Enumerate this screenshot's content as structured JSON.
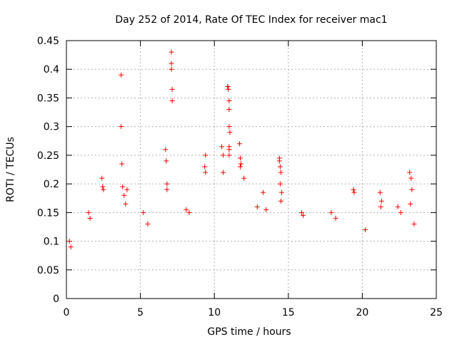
{
  "chart_data": {
    "type": "scatter",
    "title": "Day 252 of 2014, Rate Of TEC Index for receiver mac1",
    "xlabel": "GPS time / hours",
    "ylabel": "ROTI / TECUs",
    "xlim": [
      0,
      25
    ],
    "ylim": [
      0,
      0.45
    ],
    "xticks": [
      "0",
      "5",
      "10",
      "15",
      "20",
      "25"
    ],
    "yticks": [
      "0",
      "0.05",
      "0.1",
      "0.15",
      "0.2",
      "0.25",
      "0.3",
      "0.35",
      "0.4",
      "0.45"
    ],
    "grid": true,
    "marker": "plus",
    "color": "#ff0000",
    "series": [
      {
        "x": [
          3.7,
          3.7,
          7.1,
          7.1,
          7.1,
          7.15,
          7.15,
          10.9,
          10.9,
          10.95,
          11.0,
          11.0,
          11.0,
          11.05,
          11.0,
          11.0,
          11.0,
          11.7,
          11.75,
          11.8,
          11.75,
          12.0,
          13.3,
          14.4,
          14.4,
          14.45,
          14.5,
          14.45,
          14.55,
          14.5,
          9.4,
          9.35,
          9.4,
          10.5,
          10.6,
          10.6,
          6.7,
          6.75,
          6.8,
          6.8,
          2.4,
          2.45,
          2.5,
          3.75,
          3.8,
          3.9,
          4.0,
          4.1,
          19.4,
          19.45,
          21.2,
          21.3,
          21.25,
          23.2,
          23.3,
          23.35,
          23.25,
          0.2,
          0.3,
          1.5,
          1.6,
          5.2,
          5.5,
          8.1,
          8.3,
          12.9,
          13.5,
          16.0,
          15.9,
          17.9,
          18.2,
          20.2,
          22.4,
          22.6,
          23.5
        ],
        "y": [
          0.39,
          0.3,
          0.43,
          0.41,
          0.4,
          0.365,
          0.345,
          0.37,
          0.37,
          0.365,
          0.345,
          0.33,
          0.3,
          0.29,
          0.265,
          0.26,
          0.25,
          0.27,
          0.245,
          0.235,
          0.23,
          0.21,
          0.185,
          0.245,
          0.24,
          0.23,
          0.22,
          0.2,
          0.185,
          0.17,
          0.25,
          0.23,
          0.22,
          0.265,
          0.25,
          0.22,
          0.26,
          0.24,
          0.2,
          0.19,
          0.21,
          0.195,
          0.19,
          0.235,
          0.195,
          0.18,
          0.165,
          0.19,
          0.19,
          0.185,
          0.185,
          0.17,
          0.16,
          0.22,
          0.21,
          0.19,
          0.165,
          0.1,
          0.09,
          0.15,
          0.14,
          0.15,
          0.13,
          0.155,
          0.15,
          0.16,
          0.155,
          0.145,
          0.15,
          0.15,
          0.14,
          0.12,
          0.16,
          0.15,
          0.13
        ]
      }
    ]
  }
}
